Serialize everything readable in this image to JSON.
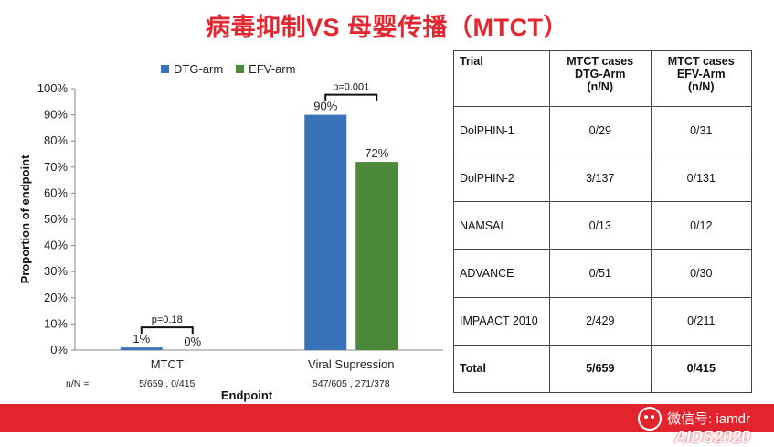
{
  "slide_title": "病毒抑制VS 母婴传播（MTCT）",
  "chart_data": {
    "type": "bar",
    "xlabel": "Endpoint",
    "ylabel": "Proportion of endpoint",
    "ylim": [
      0,
      100
    ],
    "yticks": [
      "0%",
      "10%",
      "20%",
      "30%",
      "40%",
      "50%",
      "60%",
      "70%",
      "80%",
      "90%",
      "100%"
    ],
    "categories": [
      "MTCT",
      "Viral Supression"
    ],
    "series": [
      {
        "name": "DTG-arm",
        "color": "#3a72b8",
        "values": [
          1,
          90
        ],
        "labels": [
          "1%",
          "90%"
        ]
      },
      {
        "name": "EFV-arm",
        "color": "#4a8a3a",
        "values": [
          0,
          72
        ],
        "labels": [
          "0%",
          "72%"
        ]
      }
    ],
    "annotations": [
      {
        "category": 0,
        "text": "p=0.18"
      },
      {
        "category": 1,
        "text": "p=0.001"
      }
    ],
    "nn_label": "n/N =",
    "nn_values": [
      "5/659 , 0/415",
      "547/605 , 271/378"
    ],
    "legend_position": "top"
  },
  "table": {
    "headers": [
      "Trial",
      "MTCT cases\nDTG-Arm\n(n/N)",
      "MTCT cases\nEFV-Arm\n(n/N)"
    ],
    "rows": [
      [
        "DolPHIN-1",
        "0/29",
        "0/31"
      ],
      [
        "DolPHIN-2",
        "3/137",
        "0/131"
      ],
      [
        "NAMSAL",
        "0/13",
        "0/12"
      ],
      [
        "ADVANCE",
        "0/51",
        "0/30"
      ],
      [
        "IMPAACT 2010",
        "2/429",
        "0/211"
      ],
      [
        "Total",
        "5/659",
        "0/415"
      ]
    ]
  },
  "watermark_text": "微信号: iamdr",
  "footer_logo": "AIDS2020"
}
